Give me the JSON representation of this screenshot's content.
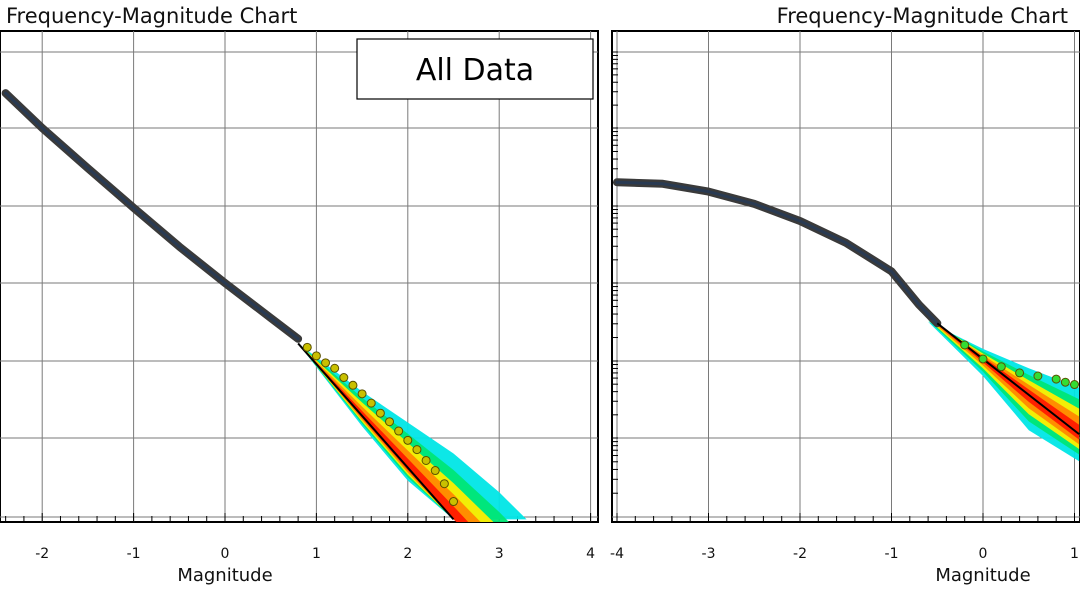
{
  "chart_data": [
    {
      "type": "line",
      "title": "Frequency-Magnitude Chart",
      "xlabel": "Magnitude",
      "ylabel": "",
      "xlim": [
        -2.4,
        4.0
      ],
      "xticks": [
        "-2",
        "-1",
        "0",
        "1",
        "2",
        "3",
        "4"
      ],
      "annotation": "All Data",
      "grid": true,
      "series": [
        {
          "role": "observed",
          "x": [
            -2.4,
            -2.0,
            -1.5,
            -1.0,
            -0.5,
            0.0,
            0.5,
            0.8
          ],
          "y": [
            2.45,
            2.0,
            1.48,
            0.97,
            0.47,
            0.0,
            -0.45,
            -0.72
          ]
        },
        {
          "role": "observed-tail",
          "x": [
            0.9,
            1.0,
            1.1,
            1.2,
            1.3,
            1.4,
            1.5,
            1.6,
            1.7,
            1.8,
            1.9,
            2.0,
            2.1,
            2.2,
            2.3,
            2.4,
            2.5
          ],
          "y": [
            -0.83,
            -0.94,
            -1.03,
            -1.1,
            -1.22,
            -1.32,
            -1.43,
            -1.55,
            -1.68,
            -1.79,
            -1.91,
            -2.03,
            -2.15,
            -2.29,
            -2.42,
            -2.59,
            -2.82
          ]
        },
        {
          "role": "fit",
          "x": [
            0.8,
            2.5
          ],
          "y": [
            -0.78,
            -3.05
          ]
        },
        {
          "role": "uncertainty-band",
          "x": [
            0.8,
            1.5,
            2.0,
            2.5,
            3.0,
            3.3
          ],
          "lower": [
            -0.78,
            -1.85,
            -2.55,
            -3.05,
            -3.05,
            -3.05
          ],
          "upper": [
            -0.78,
            -1.4,
            -1.8,
            -2.2,
            -2.7,
            -3.05
          ]
        }
      ]
    },
    {
      "type": "line",
      "title": "Frequency-Magnitude Chart",
      "xlabel": "Magnitude",
      "ylabel": "",
      "xlim": [
        -4.05,
        1.05
      ],
      "xticks": [
        "-4",
        "-3",
        "-2",
        "-1",
        "0",
        "1"
      ],
      "grid": true,
      "series": [
        {
          "role": "observed",
          "x": [
            -4.0,
            -3.5,
            -3.0,
            -2.5,
            -2.0,
            -1.5,
            -1.0,
            -0.7,
            -0.5
          ],
          "y": [
            1.3,
            1.28,
            1.18,
            1.02,
            0.8,
            0.52,
            0.15,
            -0.28,
            -0.52
          ]
        },
        {
          "role": "observed-tail",
          "x": [
            -0.2,
            0.0,
            0.2,
            0.4,
            0.6,
            0.8,
            0.9,
            1.0
          ],
          "y": [
            -0.8,
            -0.98,
            -1.08,
            -1.16,
            -1.2,
            -1.24,
            -1.28,
            -1.31
          ]
        },
        {
          "role": "fit",
          "x": [
            -0.5,
            1.05
          ],
          "y": [
            -0.52,
            -1.95
          ]
        },
        {
          "role": "uncertainty-band",
          "x": [
            -0.6,
            0.0,
            0.5,
            1.05
          ],
          "lower": [
            -0.5,
            -1.2,
            -1.9,
            -2.3
          ],
          "upper": [
            -0.5,
            -0.85,
            -1.1,
            -1.35
          ]
        }
      ]
    }
  ]
}
